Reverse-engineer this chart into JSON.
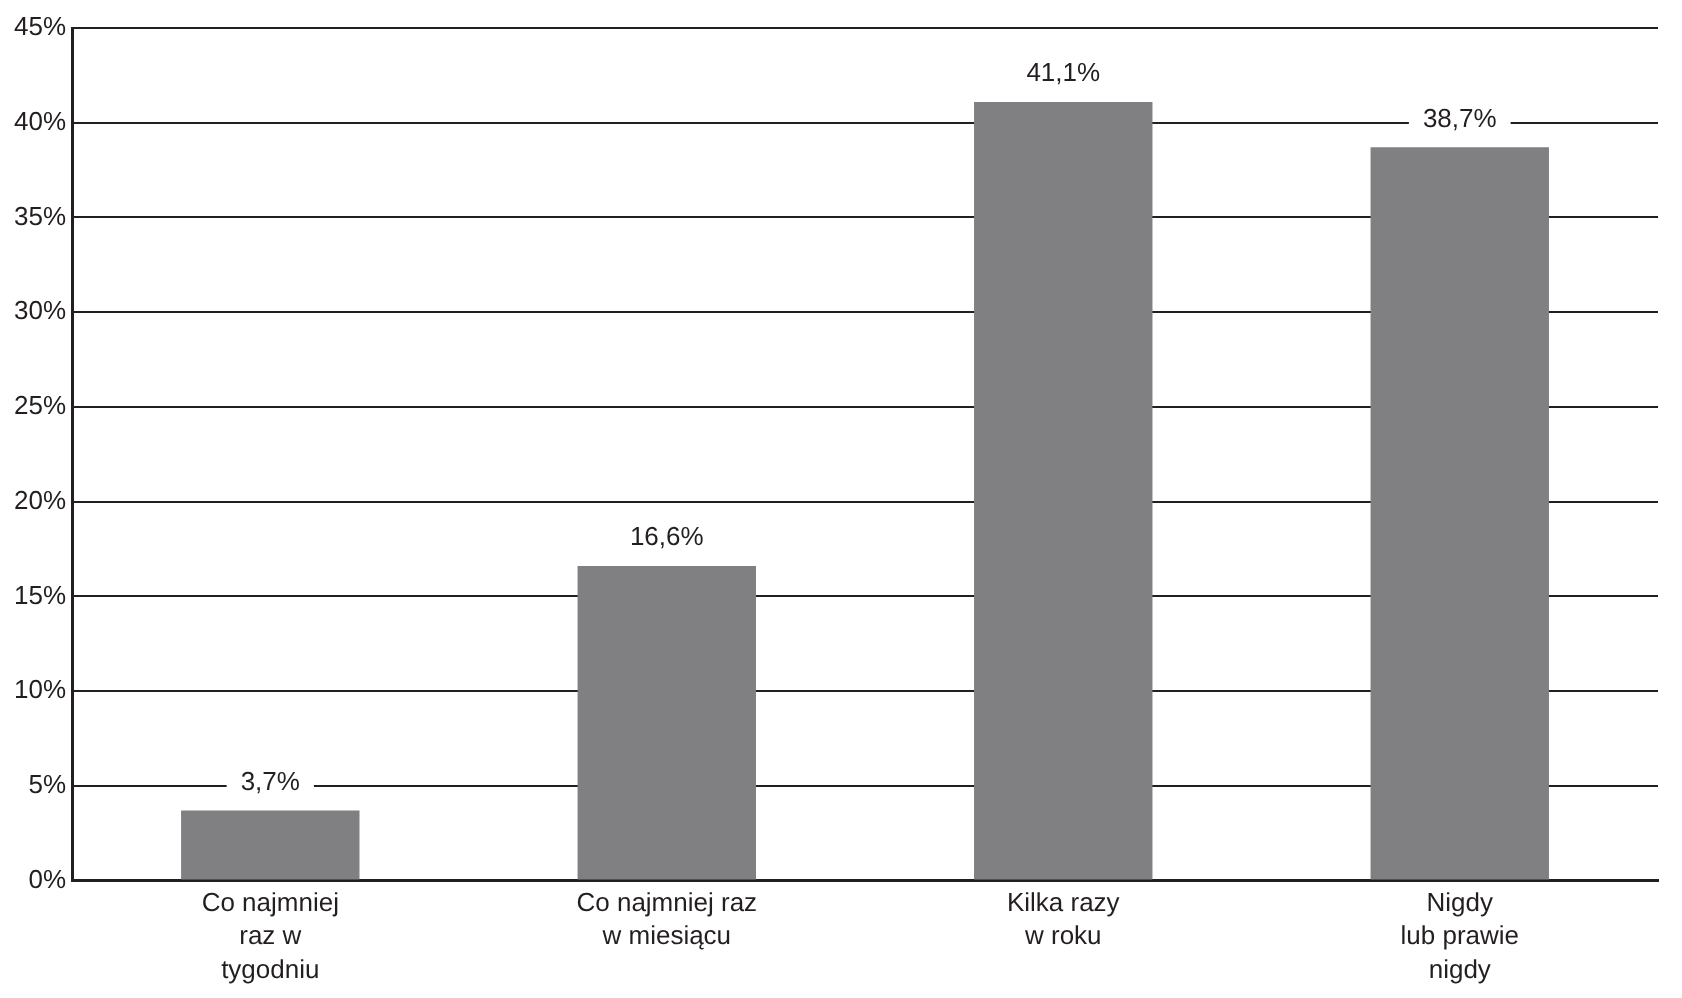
{
  "chart_data": {
    "type": "bar",
    "categories": [
      "Co najmniej\nraz w\ntygodniu",
      "Co najmniej raz\nw miesiącu",
      "Kilka razy\nw roku",
      "Nigdy\nlub prawie\nnigdy"
    ],
    "values": [
      3.7,
      16.6,
      41.1,
      38.7
    ],
    "value_labels": [
      "3,7%",
      "16,6%",
      "41,1%",
      "38,7%"
    ],
    "color": "#808083",
    "ylim": [
      0,
      45
    ],
    "yticks": [
      {
        "value": 0,
        "label": "0%"
      },
      {
        "value": 5,
        "label": "5%"
      },
      {
        "value": 10,
        "label": "10%"
      },
      {
        "value": 15,
        "label": "15%"
      },
      {
        "value": 20,
        "label": "20%"
      },
      {
        "value": 25,
        "label": "25%"
      },
      {
        "value": 30,
        "label": "30%"
      },
      {
        "value": 35,
        "label": "35%"
      },
      {
        "value": 40,
        "label": "40%"
      },
      {
        "value": 45,
        "label": "45%"
      }
    ],
    "grid": "y",
    "legend": false
  }
}
